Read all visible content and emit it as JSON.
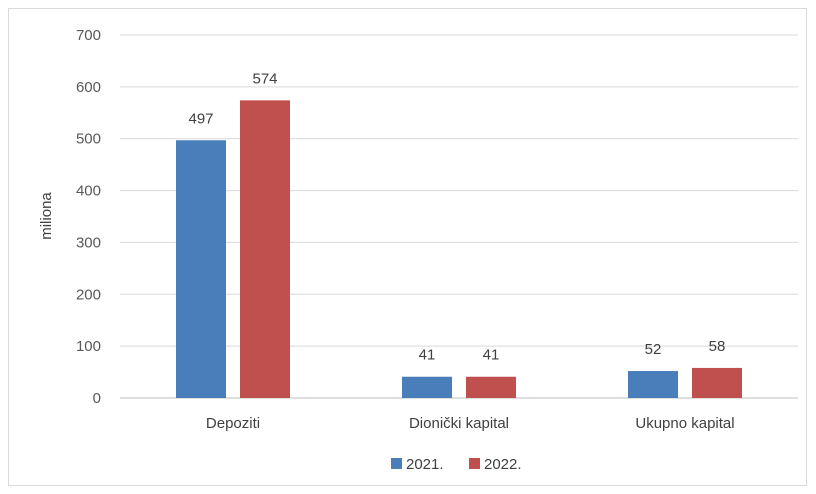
{
  "chart_data": {
    "type": "bar",
    "title": "",
    "xlabel": "",
    "ylabel": "miliona",
    "categories": [
      "Depoziti",
      "Dionički kapital",
      "Ukupno kapital"
    ],
    "series": [
      {
        "name": "2021.",
        "values": [
          497,
          41,
          52
        ],
        "color": "#4a7ebb"
      },
      {
        "name": "2022.",
        "values": [
          574,
          41,
          58
        ],
        "color": "#c0504d"
      }
    ],
    "ylim": [
      0,
      700
    ],
    "yticks": [
      0,
      100,
      200,
      300,
      400,
      500,
      600,
      700
    ],
    "grid": true,
    "legend": "bottom-center"
  }
}
